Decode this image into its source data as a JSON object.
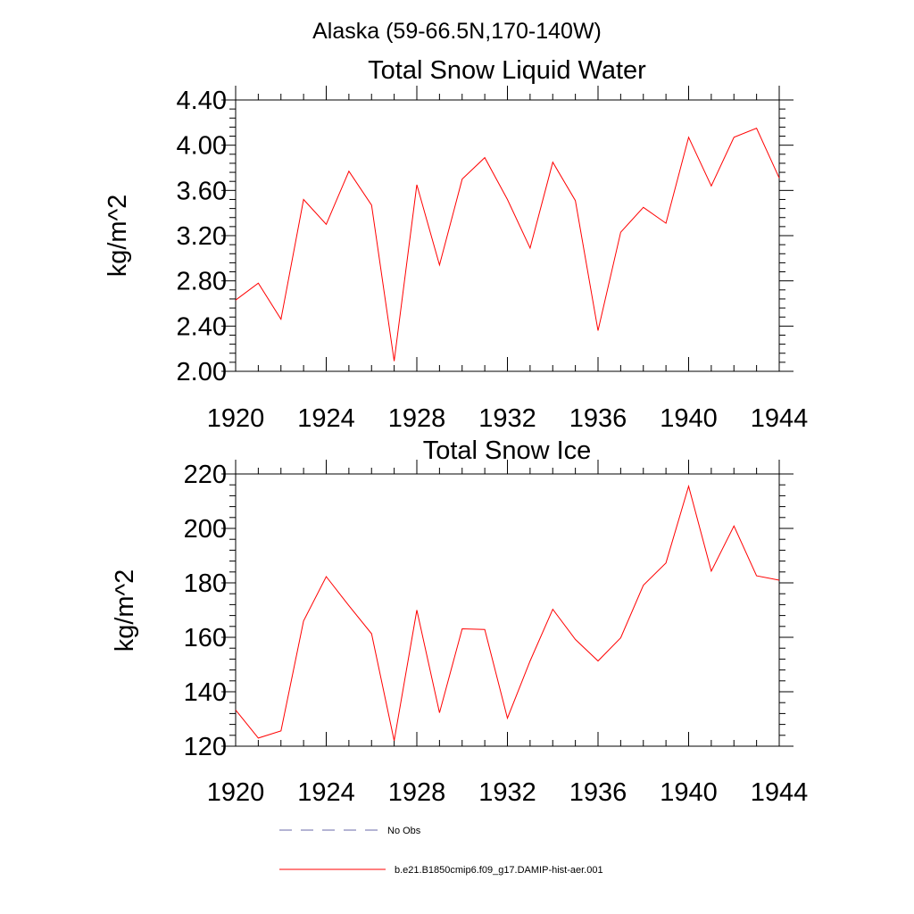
{
  "figure_title": "Alaska (59-66.5N,170-140W)",
  "colors": {
    "model_series": "#ff0000",
    "obs_series": "#6a6aa8",
    "axes": "#000000"
  },
  "legend": {
    "entries": [
      {
        "label": "No Obs",
        "style": "dashed",
        "color": "#6a6aa8"
      },
      {
        "label": "b.e21.B1850cmip6.f09_g17.DAMIP-hist-aer.001",
        "style": "solid",
        "color": "#ff0000"
      }
    ]
  },
  "chart_data": [
    {
      "type": "line",
      "title": "Total Snow Liquid Water",
      "xlabel": "",
      "ylabel": "kg/m^2",
      "xlim": [
        1920,
        1944
      ],
      "ylim": [
        2.0,
        4.4
      ],
      "x_ticks": [
        1920,
        1924,
        1928,
        1932,
        1936,
        1940,
        1944
      ],
      "y_ticks": [
        "2.00",
        "2.40",
        "2.80",
        "3.20",
        "3.60",
        "4.00",
        "4.40"
      ],
      "grid": false,
      "x": [
        1920,
        1921,
        1922,
        1923,
        1924,
        1925,
        1926,
        1927,
        1928,
        1929,
        1930,
        1931,
        1932,
        1933,
        1934,
        1935,
        1936,
        1937,
        1938,
        1939,
        1940,
        1941,
        1942,
        1943,
        1944
      ],
      "series": [
        {
          "name": "b.e21.B1850cmip6.f09_g17.DAMIP-hist-aer.001",
          "values": [
            2.63,
            2.78,
            2.46,
            3.52,
            3.3,
            3.77,
            3.47,
            2.09,
            3.65,
            2.94,
            3.7,
            3.89,
            3.52,
            3.09,
            3.85,
            3.51,
            2.36,
            3.23,
            3.45,
            3.31,
            4.07,
            3.64,
            4.07,
            4.15,
            3.71
          ]
        }
      ]
    },
    {
      "type": "line",
      "title": "Total Snow Ice",
      "xlabel": "",
      "ylabel": "kg/m^2",
      "xlim": [
        1920,
        1944
      ],
      "ylim": [
        120,
        220
      ],
      "x_ticks": [
        1920,
        1924,
        1928,
        1932,
        1936,
        1940,
        1944
      ],
      "y_ticks": [
        "120",
        "140",
        "160",
        "180",
        "200",
        "220"
      ],
      "grid": false,
      "x": [
        1920,
        1921,
        1922,
        1923,
        1924,
        1925,
        1926,
        1927,
        1928,
        1929,
        1930,
        1931,
        1932,
        1933,
        1934,
        1935,
        1936,
        1937,
        1938,
        1939,
        1940,
        1941,
        1942,
        1943,
        1944
      ],
      "series": [
        {
          "name": "b.e21.B1850cmip6.f09_g17.DAMIP-hist-aer.001",
          "values": [
            133.3,
            123,
            125.6,
            166,
            182.3,
            171.6,
            161.3,
            122,
            170,
            132.3,
            163.1,
            162.9,
            130.3,
            151.3,
            170.3,
            159.2,
            151.3,
            159.8,
            179.1,
            187.3,
            215.5,
            184.3,
            200.9,
            182.6,
            181
          ]
        }
      ]
    }
  ]
}
